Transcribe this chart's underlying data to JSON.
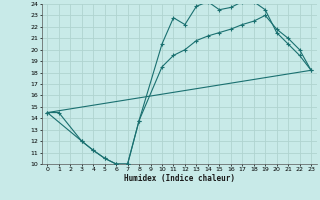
{
  "xlabel": "Humidex (Indice chaleur)",
  "xlim": [
    -0.5,
    23.5
  ],
  "ylim": [
    10,
    24
  ],
  "xticks": [
    0,
    1,
    2,
    3,
    4,
    5,
    6,
    7,
    8,
    9,
    10,
    11,
    12,
    13,
    14,
    15,
    16,
    17,
    18,
    19,
    20,
    21,
    22,
    23
  ],
  "yticks": [
    10,
    11,
    12,
    13,
    14,
    15,
    16,
    17,
    18,
    19,
    20,
    21,
    22,
    23,
    24
  ],
  "line_color": "#1a7070",
  "bg_color": "#c8eae8",
  "grid_color": "#b0d4d0",
  "line1_x": [
    0,
    1,
    3,
    4,
    5,
    6,
    7,
    8,
    10,
    11,
    12,
    13,
    14,
    15,
    16,
    17,
    18,
    19,
    20,
    21,
    22,
    23
  ],
  "line1_y": [
    14.5,
    14.5,
    12.0,
    11.2,
    10.5,
    10.0,
    10.0,
    13.8,
    20.5,
    22.8,
    22.2,
    23.8,
    24.2,
    23.5,
    23.7,
    24.2,
    24.2,
    23.5,
    21.5,
    20.5,
    19.5,
    18.2
  ],
  "line2_x": [
    0,
    23
  ],
  "line2_y": [
    14.5,
    18.2
  ],
  "line3_x": [
    0,
    3,
    4,
    5,
    6,
    7,
    8,
    10,
    11,
    12,
    13,
    14,
    15,
    16,
    17,
    18,
    19,
    20,
    21,
    22,
    23
  ],
  "line3_y": [
    14.5,
    12.0,
    11.2,
    10.5,
    10.0,
    10.0,
    13.8,
    18.5,
    19.5,
    20.0,
    20.8,
    21.2,
    21.5,
    21.8,
    22.2,
    22.5,
    23.0,
    21.8,
    21.0,
    20.0,
    18.2
  ]
}
